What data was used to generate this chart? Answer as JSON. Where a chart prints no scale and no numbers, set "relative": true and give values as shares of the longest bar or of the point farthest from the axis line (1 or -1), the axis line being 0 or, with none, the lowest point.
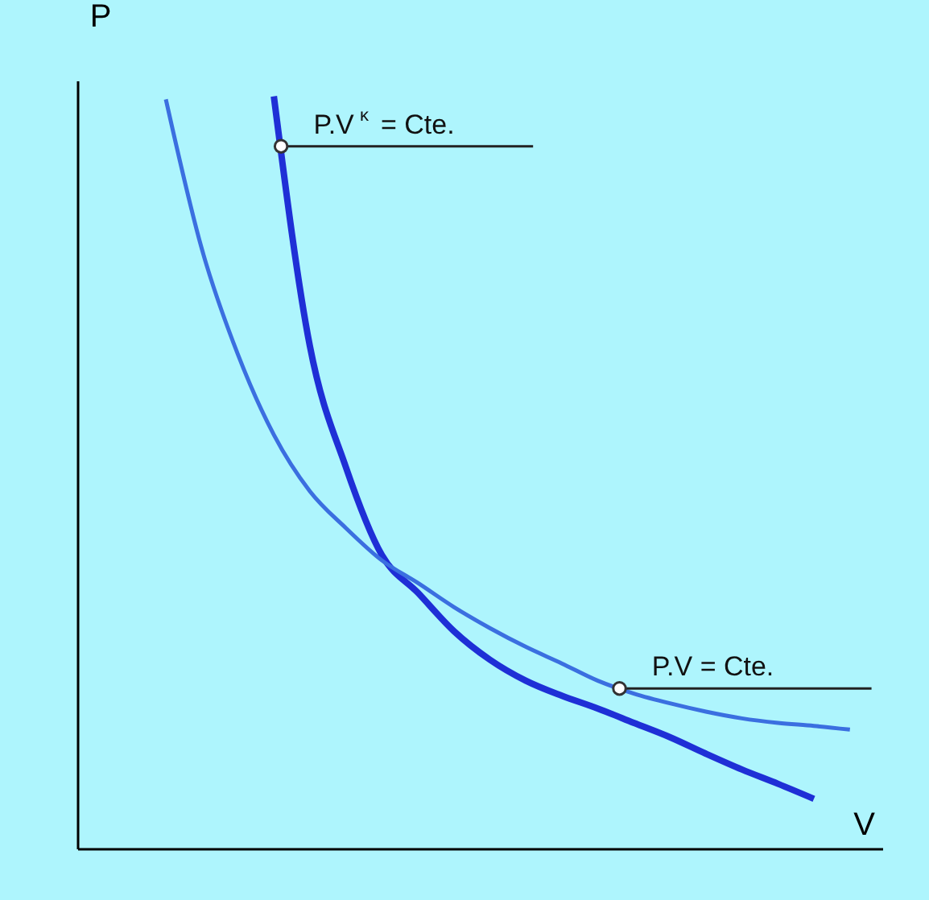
{
  "chart_data": {
    "type": "line",
    "relative": true,
    "xlabel": "V",
    "ylabel": "P",
    "categories": [
      null,
      null,
      null,
      null,
      null,
      null,
      null,
      null,
      null,
      null,
      null,
      null,
      null,
      null,
      null,
      null,
      null,
      null,
      null,
      null
    ],
    "series": [
      {
        "name": "P.V$^{κ}$ = Cte.",
        "color": "#1f2fd6",
        "values": [
          null,
          null,
          null,
          1.0,
          0.668,
          0.507,
          0.39,
          0.34,
          0.289,
          0.251,
          0.223,
          0.203,
          0.186,
          0.167,
          0.148,
          0.126,
          0.105,
          0.086,
          0.066,
          null
        ]
      },
      {
        "name": "P.V = Cte.",
        "color": "#3b6fe0",
        "values": [
          0.996,
          0.797,
          0.657,
          0.55,
          0.475,
          0.426,
          0.383,
          0.353,
          0.321,
          0.293,
          0.268,
          0.246,
          0.223,
          0.206,
          0.193,
          0.182,
          0.173,
          0.167,
          0.163,
          0.158
        ]
      }
    ],
    "grid": false,
    "tick_labels": false,
    "marker": "none",
    "line_style": "solid"
  }
}
